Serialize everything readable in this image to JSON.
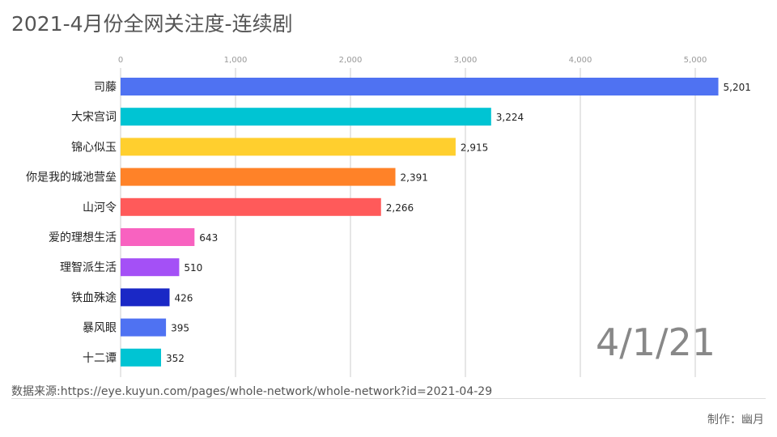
{
  "title": "2021-4月份全网关注度-连续剧",
  "date_label": "4/1/21",
  "source": "数据来源:https://eye.kuyun.com/pages/whole-network/whole-network?id=2021-04-29",
  "author": "制作：幽月",
  "chart_data": {
    "type": "bar",
    "orientation": "horizontal",
    "categories": [
      "司藤",
      "大宋宫词",
      "锦心似玉",
      "你是我的城池营垒",
      "山河令",
      "爱的理想生活",
      "理智派生活",
      "铁血殊途",
      "暴风眼",
      "十二谭"
    ],
    "values": [
      5201,
      3224,
      2915,
      2391,
      2266,
      643,
      510,
      426,
      395,
      352
    ],
    "value_labels": [
      "5,201",
      "3,224",
      "2,915",
      "2,391",
      "2,266",
      "643",
      "510",
      "426",
      "395",
      "352"
    ],
    "colors": [
      "#4f72f2",
      "#00c4d3",
      "#ffcf2e",
      "#ff8228",
      "#ff5a5a",
      "#f862c0",
      "#a450f6",
      "#1a28c6",
      "#4f72f2",
      "#00c4d3"
    ],
    "xticks": [
      0,
      1000,
      2000,
      3000,
      4000,
      5000
    ],
    "xtick_labels": [
      "0",
      "1,000",
      "2,000",
      "3,000",
      "4,000",
      "5,000"
    ],
    "xlim": [
      0,
      5350
    ],
    "grid": true,
    "axis_position": "top"
  }
}
